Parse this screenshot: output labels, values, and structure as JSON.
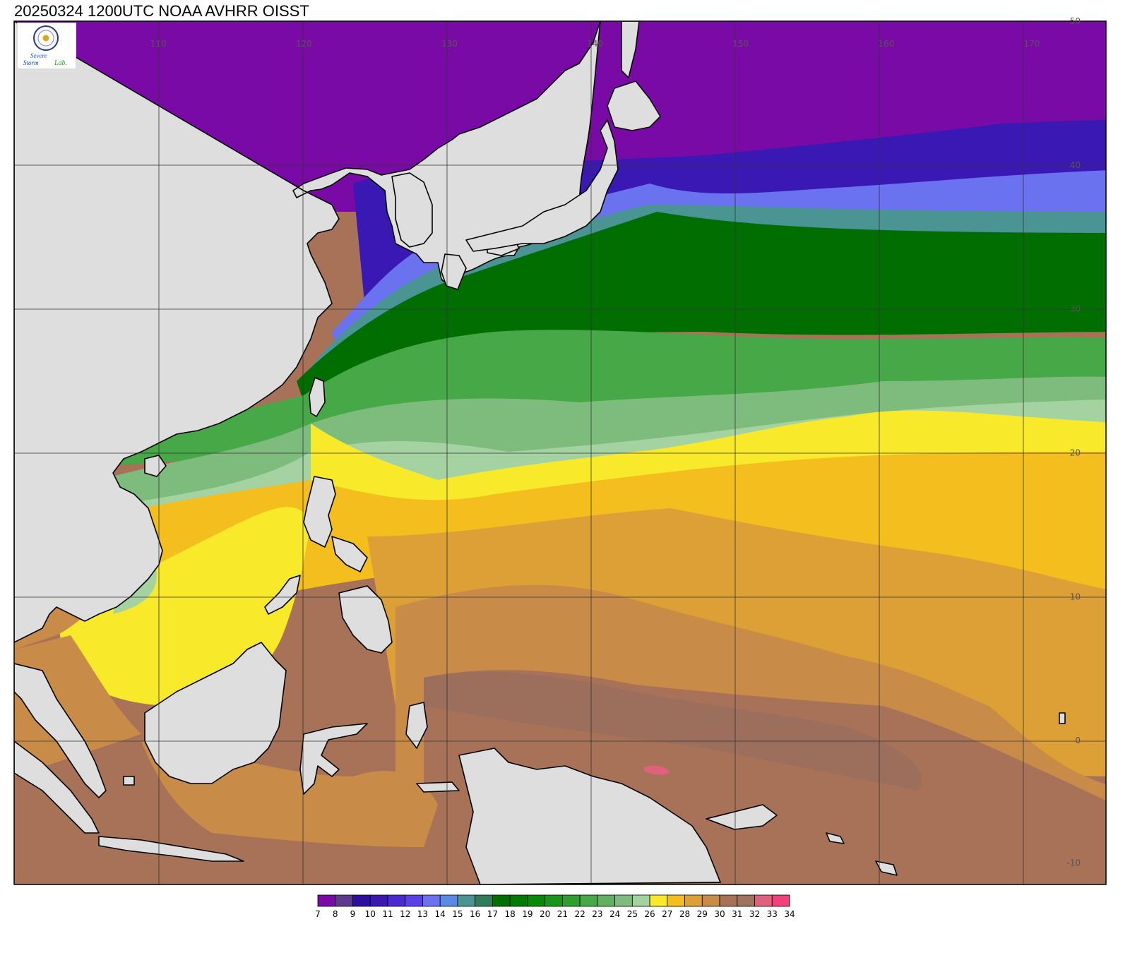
{
  "title": "20250324 1200UTC NOAA AVHRR OISST",
  "logo": {
    "icon": "severe-storm-lab-seal-icon",
    "line1": "Severe",
    "line2": "Storm",
    "line3": "Lab."
  },
  "map": {
    "projection": "cylindrical-equidistant",
    "lon_range": [
      100,
      175
    ],
    "lat_range": [
      -10,
      50
    ],
    "land_color": "#dedede",
    "coast_color": "#000000",
    "grid_color": "#333333",
    "lon_lines": [
      110,
      120,
      130,
      140,
      150,
      160,
      170
    ],
    "lat_lines": [
      0,
      10,
      20,
      30,
      40
    ],
    "lon_labels": [
      "110",
      "120",
      "130",
      "140",
      "150",
      "160",
      "170"
    ],
    "lat_labels": [
      {
        "lat": 50,
        "text": "50"
      },
      {
        "lat": 40,
        "text": "40"
      },
      {
        "lat": 30,
        "text": "30"
      },
      {
        "lat": 20,
        "text": "20"
      },
      {
        "lat": 10,
        "text": "10"
      },
      {
        "lat": 0,
        "text": "0"
      },
      {
        "lat": -8.5,
        "text": "-10"
      }
    ]
  },
  "colorbar": {
    "labels": [
      "7",
      "8",
      "9",
      "10",
      "11",
      "12",
      "13",
      "14",
      "15",
      "16",
      "17",
      "18",
      "19",
      "20",
      "21",
      "22",
      "23",
      "24",
      "25",
      "26",
      "27",
      "28",
      "29",
      "30",
      "31",
      "32",
      "33",
      "34"
    ],
    "colors": [
      "#7a0aa6",
      "#5e3a8e",
      "#2d0f9e",
      "#3a18b4",
      "#4a2ad0",
      "#5a40e6",
      "#6a72f0",
      "#5b8ae6",
      "#4a9494",
      "#2e7c5a",
      "#006e00",
      "#007a00",
      "#088a08",
      "#1a951a",
      "#2e9e2e",
      "#46a846",
      "#62b062",
      "#7ebc7e",
      "#a4d2a0",
      "#f8ea2a",
      "#f4be1e",
      "#dda036",
      "#c98c48",
      "#a87258",
      "#a07260",
      "#e0607e",
      "#f2407a",
      "#e02e46"
    ]
  }
}
